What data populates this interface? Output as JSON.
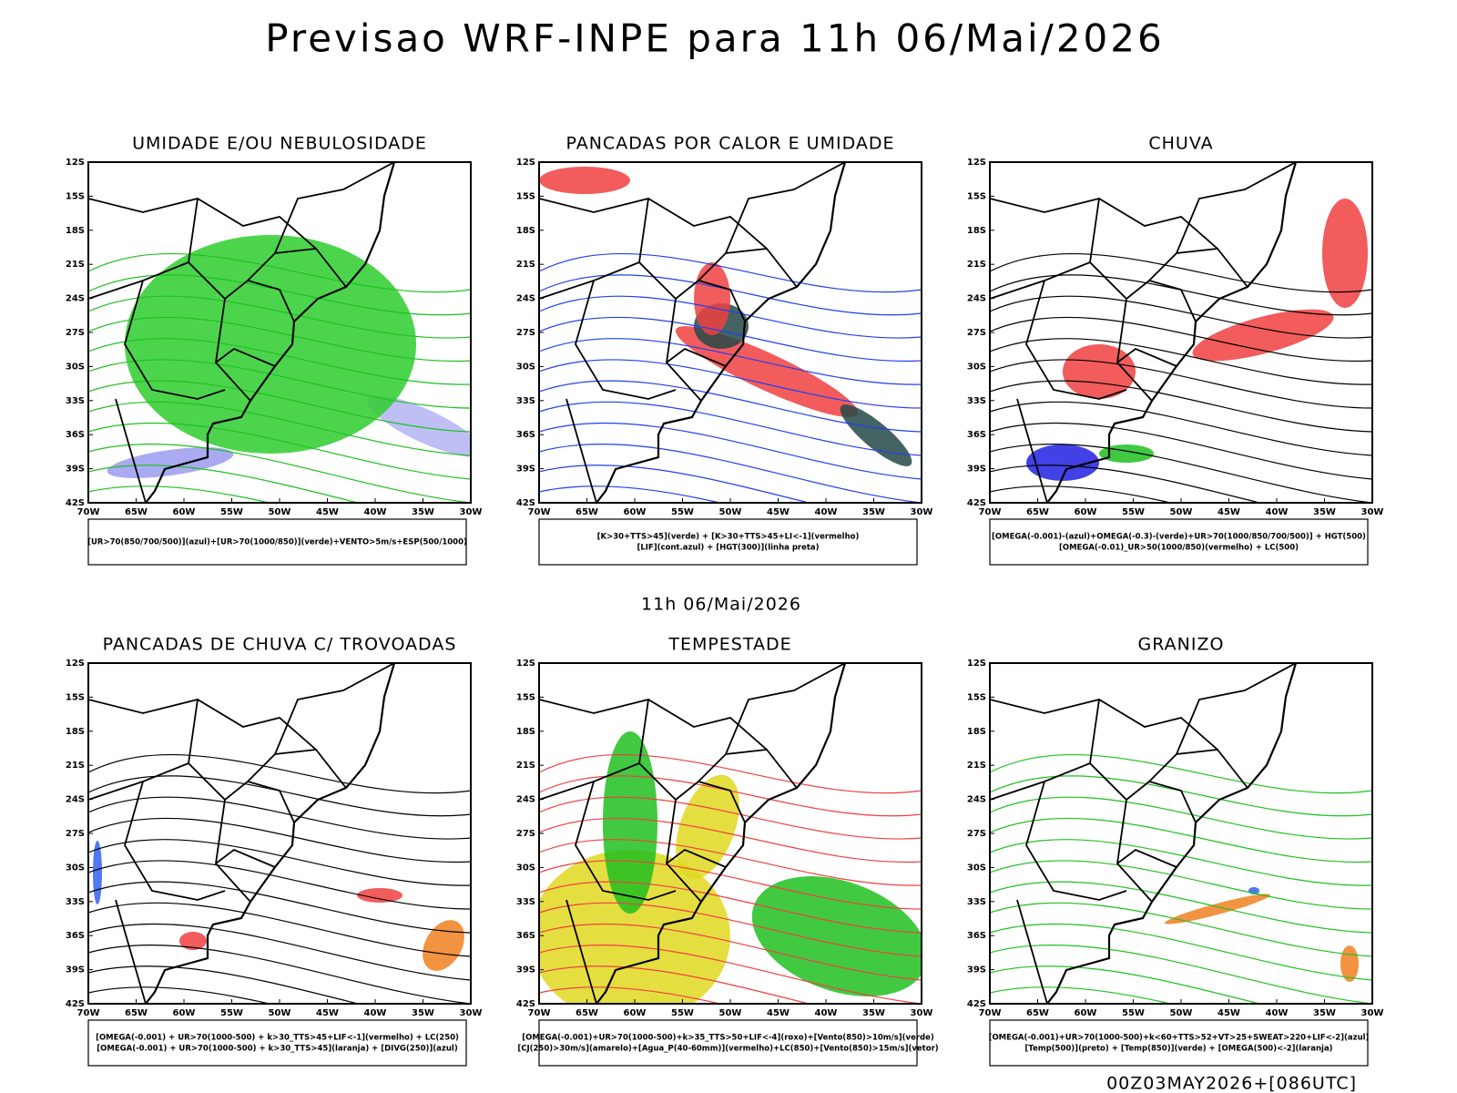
{
  "title": "Previsao WRF-INPE  para 11h 06/Mai/2026",
  "subtitle": "11h 06/Mai/2026",
  "footer": "00Z03MAY2026+[086UTC]",
  "lat_labels": [
    "12S",
    "15S",
    "18S",
    "21S",
    "24S",
    "27S",
    "30S",
    "33S",
    "36S",
    "39S",
    "42S"
  ],
  "lon_labels": [
    "70W",
    "65W",
    "60W",
    "55W",
    "50W",
    "45W",
    "40W",
    "35W",
    "30W"
  ],
  "panels": [
    {
      "title": "UMIDADE E/OU NEBULOSIDADE",
      "legend": [
        "[UR>70(850/700/500)](azul)+[UR>70(1000/850)](verde)+VENTO>5m/s+ESP(500/1000)"
      ]
    },
    {
      "title": "PANCADAS POR CALOR E UMIDADE",
      "legend": [
        "[K>30+TTS>45](verde) + [K>30+TTS>45+LI<-1](vermelho)",
        "[LIF](cont.azul) + [HGT(300)](linha preta)"
      ]
    },
    {
      "title": "CHUVA",
      "legend": [
        "[OMEGA(-0.001)-(azul)+OMEGA(-0.3)-(verde)+UR>70(1000/850/700/500)] + HGT(500)",
        "[OMEGA(-0.01)_UR>50(1000/850)(vermelho) + LC(500)"
      ]
    },
    {
      "title": "PANCADAS DE CHUVA C/ TROVOADAS",
      "legend": [
        "[OMEGA(-0.001) + UR>70(1000-500) + k>30_TTS>45+LIF<-1](vermelho) + LC(250)",
        "[OMEGA(-0.001) + UR>70(1000-500) + k>30_TTS>45](laranja) + [DIVG(250)](azul)"
      ]
    },
    {
      "title": "TEMPESTADE",
      "legend": [
        "[OMEGA(-0.001)+UR>70(1000-500)+k>35_TTS>50+LIF<-4](roxo)+[Vento(850)>10m/s](verde)",
        "[CJ(250)>30m/s](amarelo)+[Agua_P(40-60mm)](vermelho)+LC(850)+[Vento(850)>15m/s](vetor)"
      ]
    },
    {
      "title": "GRANIZO",
      "legend": [
        "[OMEGA(-0.001)+UR>70(1000-500)+k<60+TTS>52+VT>25+SWEAT>220+LIF<-2](azul)",
        "[Temp(500)](preto) + [Temp(850)](verde) + [OMEGA(500)<-2](laranja)"
      ]
    }
  ]
}
